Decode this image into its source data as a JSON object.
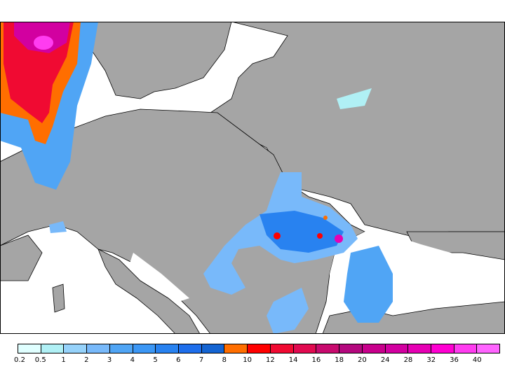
{
  "map": {
    "land_color": "#a5a5a5",
    "sea_color": "#ffffff"
  },
  "legend": {
    "labels": [
      "0.2",
      "0.5",
      "1",
      "2",
      "3",
      "4",
      "5",
      "6",
      "7",
      "8",
      "10",
      "12",
      "14",
      "16",
      "18",
      "20",
      "24",
      "28",
      "32",
      "36",
      "40"
    ],
    "colors": [
      "#e0ffff",
      "#b0f0f5",
      "#96d2fa",
      "#78b9fa",
      "#50a5f5",
      "#3c97f5",
      "#2882f0",
      "#1e6eeb",
      "#1464d2",
      "#ff6e00",
      "#ff0000",
      "#f00a32",
      "#e10a50",
      "#c80a6e",
      "#b4087e",
      "#c8008c",
      "#d200a0",
      "#e600b4",
      "#ff00d2",
      "#ff3cf0",
      "#ff64ff"
    ]
  }
}
